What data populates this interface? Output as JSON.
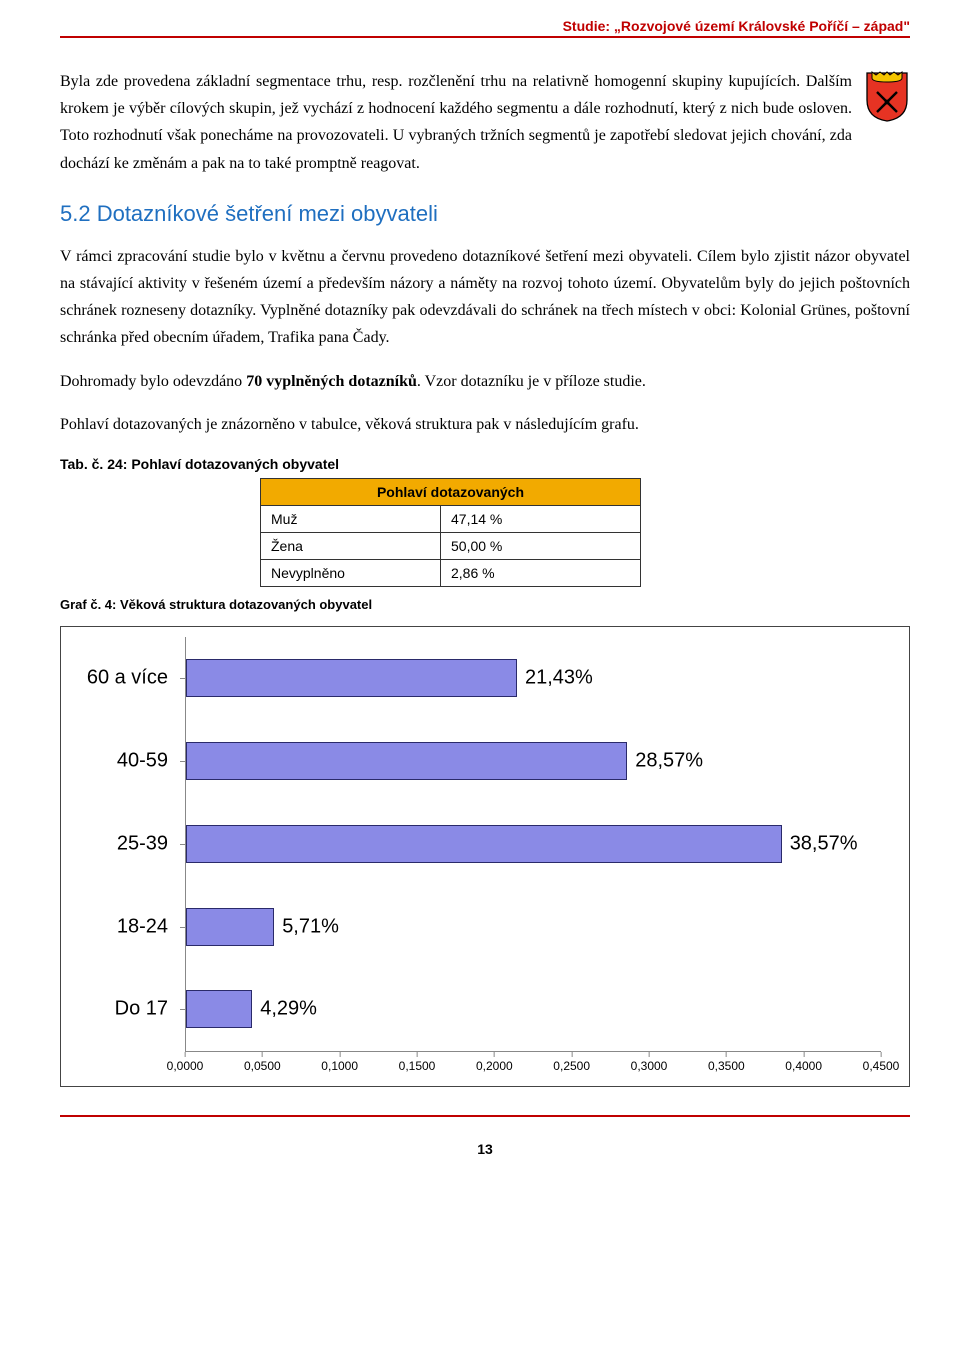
{
  "header": {
    "title": "Studie: „Rozvojové území Královské Poříčí – západ\""
  },
  "crest": {
    "shield_fill": "#e63323",
    "shield_stroke": "#000000",
    "crown_fill": "#f5c400",
    "cross_fill": "#000000"
  },
  "paragraph1": "Byla zde provedena základní segmentace trhu, resp. rozčlenění trhu na relativně homogenní skupiny kupujících. Dalším krokem je výběr cílových skupin, jež vychází z hodnocení každého segmentu a dále rozhodnutí, který z nich bude osloven. Toto rozhodnutí však ponecháme na provozovateli. U vybraných tržních segmentů je zapotřebí sledovat jejich chování, zda dochází ke změnám a pak na to také promptně reagovat.",
  "section_heading": "5.2 Dotazníkové šetření mezi obyvateli",
  "paragraph2": "V rámci zpracování studie bylo v květnu a červnu provedeno dotazníkové šetření mezi obyvateli. Cílem bylo zjistit názor obyvatel na stávající aktivity v řešeném území a především názory a náměty na rozvoj tohoto území. Obyvatelům byly do jejich poštovních schránek rozneseny dotazníky. Vyplněné dotazníky pak odevzdávali do schránek na třech místech v obci: Kolonial Grünes, poštovní schránka před obecním úřadem, Trafika pana Čady.",
  "paragraph3_prefix": "Dohromady bylo odevzdáno ",
  "paragraph3_bold": "70 vyplněných dotazníků",
  "paragraph3_suffix": ". Vzor dotazníku je v příloze studie.",
  "paragraph4": "Pohlaví dotazovaných je znázorněno v tabulce, věková struktura pak v následujícím grafu.",
  "table_caption": "Tab. č. 24: Pohlaví dotazovaných obyvatel",
  "table": {
    "header": "Pohlaví dotazovaných",
    "header_bg": "#f2aa00",
    "col1_width": 180,
    "col2_width": 200,
    "rows": [
      {
        "label": "Muž",
        "value": "47,14 %"
      },
      {
        "label": "Žena",
        "value": "50,00 %"
      },
      {
        "label": "Nevyplněno",
        "value": "2,86 %"
      }
    ]
  },
  "graf_caption": "Graf č. 4: Věková struktura dotazovaných obyvatel",
  "chart": {
    "type": "bar-horizontal",
    "xlim": [
      0.0,
      0.45
    ],
    "bar_fill": "#8a8ae6",
    "bar_stroke": "#2a2a6a",
    "background": "#ffffff",
    "axis_color": "#888888",
    "label_fontsize": 20,
    "tick_fontsize": 12,
    "categories": [
      {
        "name": "60 a více",
        "value": 0.2143,
        "label": "21,43%"
      },
      {
        "name": "40-59",
        "value": 0.2857,
        "label": "28,57%"
      },
      {
        "name": "25-39",
        "value": 0.3857,
        "label": "38,57%"
      },
      {
        "name": "18-24",
        "value": 0.0571,
        "label": "5,71%"
      },
      {
        "name": "Do 17",
        "value": 0.0429,
        "label": "4,29%"
      }
    ],
    "xticks": [
      {
        "v": 0.0,
        "label": "0,0000"
      },
      {
        "v": 0.05,
        "label": "0,0500"
      },
      {
        "v": 0.1,
        "label": "0,1000"
      },
      {
        "v": 0.15,
        "label": "0,1500"
      },
      {
        "v": 0.2,
        "label": "0,2000"
      },
      {
        "v": 0.25,
        "label": "0,2500"
      },
      {
        "v": 0.3,
        "label": "0,3000"
      },
      {
        "v": 0.35,
        "label": "0,3500"
      },
      {
        "v": 0.4,
        "label": "0,4000"
      },
      {
        "v": 0.45,
        "label": "0,4500"
      }
    ]
  },
  "page_number": "13"
}
